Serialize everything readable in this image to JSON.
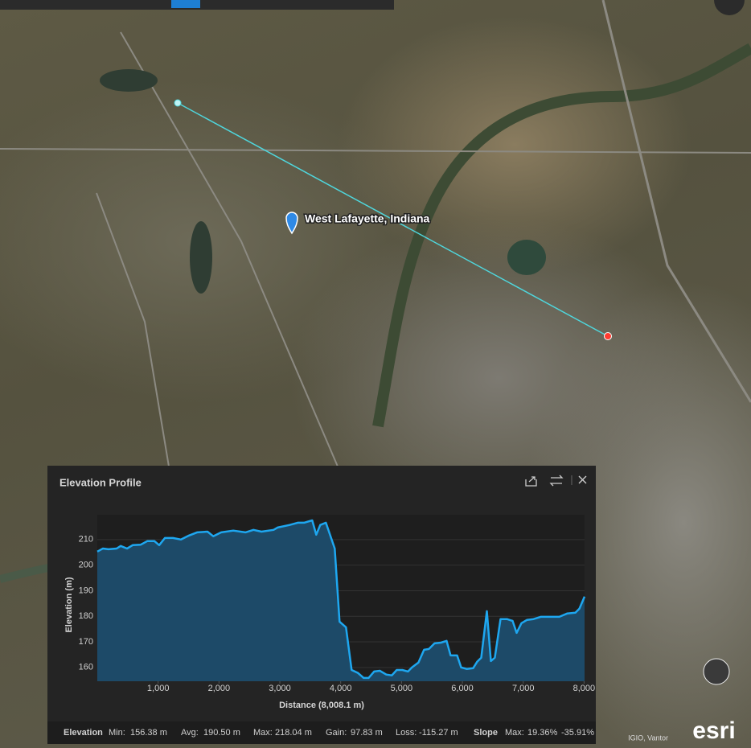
{
  "map": {
    "place_label": "West Lafayette, Indiana",
    "attribution": "IGIO, Vantor",
    "logo": "esri"
  },
  "chart_data": {
    "type": "area",
    "title": "Elevation Profile",
    "x_label": "Distance (8,008.1  m)",
    "y_label": "Elevation (m)",
    "x": [
      0,
      93,
      185,
      317,
      384,
      489,
      582,
      714,
      820,
      939,
      1018,
      1111,
      1243,
      1376,
      1508,
      1640,
      1812,
      1905,
      2037,
      2235,
      2434,
      2566,
      2698,
      2897,
      2963,
      3161,
      3294,
      3399,
      3532,
      3598,
      3664,
      3757,
      3902,
      3981,
      4087,
      4180,
      4286,
      4378,
      4458,
      4550,
      4643,
      4749,
      4841,
      4921,
      5013,
      5106,
      5172,
      5278,
      5370,
      5450,
      5542,
      5648,
      5741,
      5807,
      5913,
      5979,
      6071,
      6177,
      6243,
      6310,
      6402,
      6468,
      6534,
      6627,
      6733,
      6825,
      6892,
      6971,
      7063,
      7169,
      7288,
      7460,
      7593,
      7725,
      7857,
      7923,
      8008.1
    ],
    "series": [
      {
        "name": "Elevation",
        "color": "#1ea7f0",
        "fill": "#1d4a68",
        "values": [
          205.3,
          206.5,
          206.2,
          206.5,
          207.5,
          206.5,
          207.8,
          208,
          209.4,
          209.4,
          207.8,
          210.6,
          210.6,
          210,
          211.6,
          212.8,
          213.1,
          211.3,
          212.8,
          213.5,
          212.8,
          213.8,
          213.1,
          213.8,
          214.7,
          215.7,
          216.6,
          216.6,
          217.5,
          211.9,
          215.7,
          216.6,
          206.5,
          177.9,
          175.7,
          159,
          157.8,
          155.9,
          155.9,
          158.4,
          158.7,
          157.2,
          156.9,
          159,
          159,
          158.4,
          160,
          161.9,
          166.9,
          167.2,
          169.4,
          169.7,
          170.4,
          164.7,
          164.7,
          160,
          159.4,
          159.7,
          162.2,
          163.8,
          182,
          162.5,
          163.8,
          178.9,
          178.9,
          178.2,
          173.5,
          177.3,
          178.6,
          178.9,
          179.8,
          179.8,
          179.8,
          181.1,
          181.4,
          183,
          187.7
        ]
      }
    ],
    "xlim": [
      0,
      8008.1
    ],
    "ylim": [
      154.6,
      219.7
    ],
    "xticks": [
      {
        "value": 1000,
        "label": "1,000"
      },
      {
        "value": 2000,
        "label": "2,000"
      },
      {
        "value": 3000,
        "label": "3,000"
      },
      {
        "value": 4000,
        "label": "4,000"
      },
      {
        "value": 5000,
        "label": "5,000"
      },
      {
        "value": 6000,
        "label": "6,000"
      },
      {
        "value": 7000,
        "label": "7,000"
      },
      {
        "value": 8000,
        "label": "8,000"
      }
    ],
    "yticks": [
      160,
      170,
      180,
      190,
      200,
      210
    ],
    "grid": true
  },
  "stats": {
    "elevation": {
      "title": "Elevation",
      "items": [
        {
          "label": "Min:",
          "value": "156.38 m"
        },
        {
          "label": "Avg:",
          "value": "190.50 m"
        },
        {
          "label": "Max:",
          "value": "218.04 m"
        },
        {
          "label": "Gain:",
          "value": "97.83 m"
        },
        {
          "label": "Loss:",
          "value": "-115.27 m"
        }
      ]
    },
    "slope": {
      "title": "Slope",
      "label": "Max:",
      "max": "19.36%",
      "min": "-35.91%"
    }
  }
}
